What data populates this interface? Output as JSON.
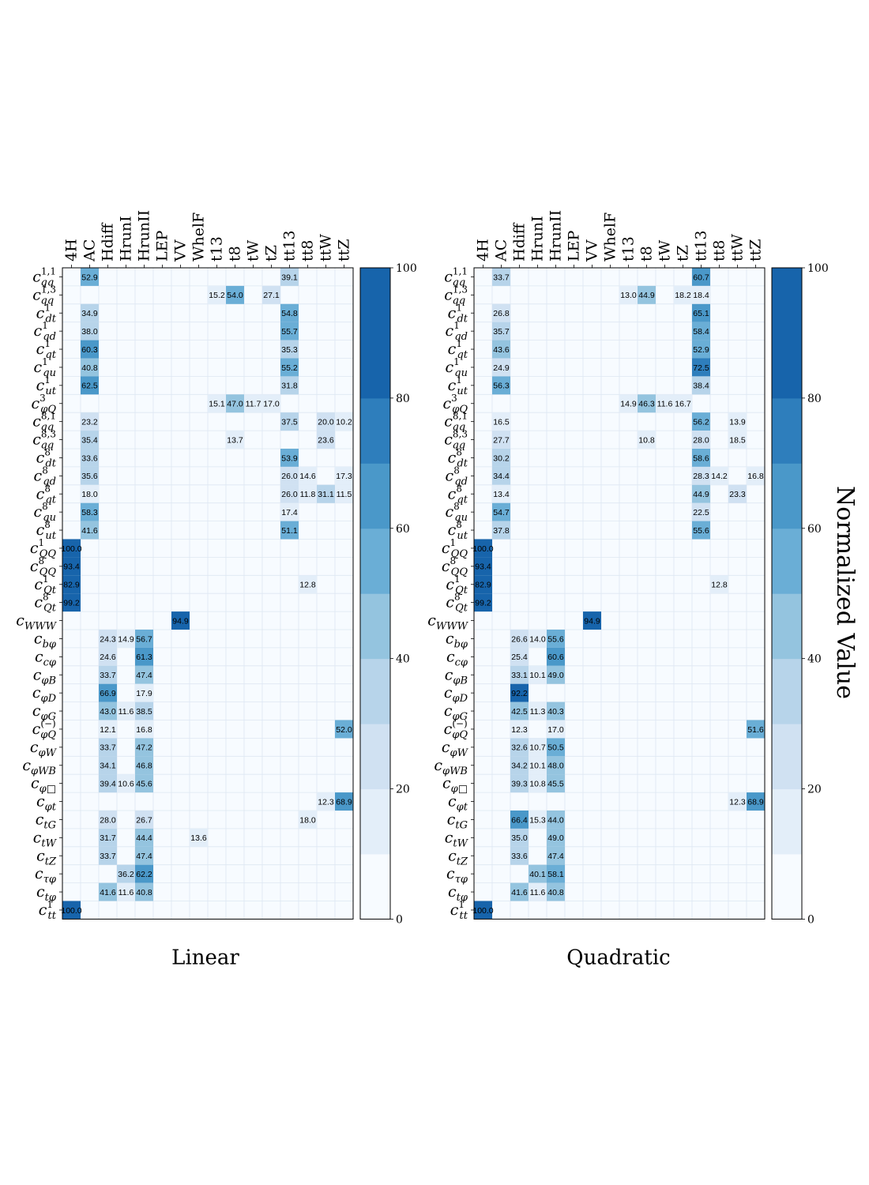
{
  "figure": {
    "colorbar_label": "Normalized Value"
  },
  "chart_data": [
    {
      "type": "heatmap",
      "title": "Linear",
      "columns": [
        "4H",
        "AC",
        "Hdiff",
        "HrunI",
        "HrunII",
        "LEP",
        "VV",
        "WhelF",
        "t13",
        "t8",
        "tW",
        "tZ",
        "tt13",
        "tt8",
        "ttW",
        "ttZ"
      ],
      "rows": [
        {
          "label": "c_qq^{1,1}",
          "base": "c",
          "sub": "qq",
          "sup": "1,1",
          "values": {
            "AC": 52.9,
            "tt13": 39.1
          }
        },
        {
          "label": "c_qq^{1,3}",
          "base": "c",
          "sub": "qq",
          "sup": "1,3",
          "values": {
            "t13": 15.2,
            "t8": 54.0,
            "tZ": 27.1
          }
        },
        {
          "label": "c_dt^{1}",
          "base": "c",
          "sub": "dt",
          "sup": "1",
          "values": {
            "AC": 34.9,
            "tt13": 54.8
          }
        },
        {
          "label": "c_qd^{1}",
          "base": "c",
          "sub": "qd",
          "sup": "1",
          "values": {
            "AC": 38.0,
            "tt13": 55.7
          }
        },
        {
          "label": "c_qt^{1}",
          "base": "c",
          "sub": "qt",
          "sup": "1",
          "values": {
            "AC": 60.3,
            "tt13": 35.3
          }
        },
        {
          "label": "c_qu^{1}",
          "base": "c",
          "sub": "qu",
          "sup": "1",
          "values": {
            "AC": 40.8,
            "tt13": 55.2
          }
        },
        {
          "label": "c_ut^{1}",
          "base": "c",
          "sub": "ut",
          "sup": "1",
          "values": {
            "AC": 62.5,
            "tt13": 31.8
          }
        },
        {
          "label": "c_φQ^{3}",
          "base": "c",
          "sub": "φQ",
          "sup": "3",
          "values": {
            "t13": 15.1,
            "t8": 47.0,
            "tW": 11.7,
            "tZ": 17.0
          }
        },
        {
          "label": "c_qq^{8,1}",
          "base": "c",
          "sub": "qq",
          "sup": "8,1",
          "values": {
            "AC": 23.2,
            "tt13": 37.5,
            "ttW": 20.0,
            "ttZ": 10.2
          }
        },
        {
          "label": "c_qq^{8,3}",
          "base": "c",
          "sub": "qq",
          "sup": "8,3",
          "values": {
            "AC": 35.4,
            "t8": 13.7,
            "ttW": 23.6
          }
        },
        {
          "label": "c_dt^{8}",
          "base": "c",
          "sub": "dt",
          "sup": "8",
          "values": {
            "AC": 33.6,
            "tt13": 53.9
          }
        },
        {
          "label": "c_qd^{8}",
          "base": "c",
          "sub": "qd",
          "sup": "8",
          "values": {
            "AC": 35.6,
            "tt13": 26.0,
            "tt8": 14.6,
            "ttZ": 17.3
          }
        },
        {
          "label": "c_qt^{8}",
          "base": "c",
          "sub": "qt",
          "sup": "8",
          "values": {
            "AC": 18.0,
            "tt13": 26.0,
            "tt8": 11.8,
            "ttW": 31.1,
            "ttZ": 11.5
          }
        },
        {
          "label": "c_qu^{8}",
          "base": "c",
          "sub": "qu",
          "sup": "8",
          "values": {
            "AC": 58.3,
            "tt13": 17.4
          }
        },
        {
          "label": "c_ut^{8}",
          "base": "c",
          "sub": "ut",
          "sup": "8",
          "values": {
            "AC": 41.6,
            "tt13": 51.1
          }
        },
        {
          "label": "c_QQ^{1}",
          "base": "c",
          "sub": "QQ",
          "sup": "1",
          "values": {
            "4H": 100.0
          }
        },
        {
          "label": "c_QQ^{8}",
          "base": "c",
          "sub": "QQ",
          "sup": "8",
          "values": {
            "4H": 93.4
          }
        },
        {
          "label": "c_Qt^{1}",
          "base": "c",
          "sub": "Qt",
          "sup": "1",
          "values": {
            "4H": 82.9,
            "tt8": 12.8
          }
        },
        {
          "label": "c_Qt^{8}",
          "base": "c",
          "sub": "Qt",
          "sup": "8",
          "values": {
            "4H": 99.2
          }
        },
        {
          "label": "c_WWW",
          "base": "c",
          "sub": "WWW",
          "sup": "",
          "values": {
            "VV": 94.9
          }
        },
        {
          "label": "c_bφ",
          "base": "c",
          "sub": "bφ",
          "sup": "",
          "values": {
            "Hdiff": 24.3,
            "HrunI": 14.9,
            "HrunII": 56.7
          }
        },
        {
          "label": "c_cφ",
          "base": "c",
          "sub": "cφ",
          "sup": "",
          "values": {
            "Hdiff": 24.6,
            "HrunII": 61.3
          }
        },
        {
          "label": "c_φB",
          "base": "c",
          "sub": "φB",
          "sup": "",
          "values": {
            "Hdiff": 33.7,
            "HrunII": 47.4
          }
        },
        {
          "label": "c_φD",
          "base": "c",
          "sub": "φD",
          "sup": "",
          "values": {
            "Hdiff": 66.9,
            "HrunII": 17.9
          }
        },
        {
          "label": "c_φG",
          "base": "c",
          "sub": "φG",
          "sup": "",
          "values": {
            "Hdiff": 43.0,
            "HrunI": 11.6,
            "HrunII": 38.5
          }
        },
        {
          "label": "c_φQ^{(−)}",
          "base": "c",
          "sub": "φQ",
          "sup": "(−)",
          "values": {
            "Hdiff": 12.1,
            "HrunII": 16.8,
            "ttZ": 52.0
          }
        },
        {
          "label": "c_φW",
          "base": "c",
          "sub": "φW",
          "sup": "",
          "values": {
            "Hdiff": 33.7,
            "HrunII": 47.2
          }
        },
        {
          "label": "c_φWB",
          "base": "c",
          "sub": "φWB",
          "sup": "",
          "values": {
            "Hdiff": 34.1,
            "HrunII": 46.8
          }
        },
        {
          "label": "c_φ□",
          "base": "c",
          "sub": "φ□",
          "sup": "",
          "values": {
            "Hdiff": 39.4,
            "HrunI": 10.6,
            "HrunII": 45.6
          }
        },
        {
          "label": "c_φt",
          "base": "c",
          "sub": "φt",
          "sup": "",
          "values": {
            "ttW": 12.3,
            "ttZ": 68.9
          }
        },
        {
          "label": "c_tG",
          "base": "c",
          "sub": "tG",
          "sup": "",
          "values": {
            "Hdiff": 28.0,
            "HrunII": 26.7,
            "tt8": 18.0
          }
        },
        {
          "label": "c_tW",
          "base": "c",
          "sub": "tW",
          "sup": "",
          "values": {
            "Hdiff": 31.7,
            "HrunII": 44.4,
            "WhelF": 13.6
          }
        },
        {
          "label": "c_tZ",
          "base": "c",
          "sub": "tZ",
          "sup": "",
          "values": {
            "Hdiff": 33.7,
            "HrunII": 47.4
          }
        },
        {
          "label": "c_τφ",
          "base": "c",
          "sub": "τφ",
          "sup": "",
          "values": {
            "HrunI": 36.2,
            "HrunII": 62.2
          }
        },
        {
          "label": "c_tφ",
          "base": "c",
          "sub": "tφ",
          "sup": "",
          "values": {
            "Hdiff": 41.6,
            "HrunI": 11.6,
            "HrunII": 40.8
          }
        },
        {
          "label": "c_tt^{1}",
          "base": "c",
          "sub": "tt",
          "sup": "1",
          "values": {
            "4H": 100.0
          }
        }
      ],
      "colorbar": {
        "range": [
          0,
          100
        ],
        "ticks": [
          0,
          20,
          40,
          60,
          80,
          100
        ],
        "levels": 10
      }
    },
    {
      "type": "heatmap",
      "title": "Quadratic",
      "columns": [
        "4H",
        "AC",
        "Hdiff",
        "HrunI",
        "HrunII",
        "LEP",
        "VV",
        "WhelF",
        "t13",
        "t8",
        "tW",
        "tZ",
        "tt13",
        "tt8",
        "ttW",
        "ttZ"
      ],
      "rows": [
        {
          "label": "c_qq^{1,1}",
          "base": "c",
          "sub": "qq",
          "sup": "1,1",
          "values": {
            "AC": 33.7,
            "tt13": 60.7
          }
        },
        {
          "label": "c_qq^{1,3}",
          "base": "c",
          "sub": "qq",
          "sup": "1,3",
          "values": {
            "t13": 13.0,
            "t8": 44.9,
            "tZ": 18.2,
            "tt13": 18.4
          }
        },
        {
          "label": "c_dt^{1}",
          "base": "c",
          "sub": "dt",
          "sup": "1",
          "values": {
            "AC": 26.8,
            "tt13": 65.1
          }
        },
        {
          "label": "c_qd^{1}",
          "base": "c",
          "sub": "qd",
          "sup": "1",
          "values": {
            "AC": 35.7,
            "tt13": 58.4
          }
        },
        {
          "label": "c_qt^{1}",
          "base": "c",
          "sub": "qt",
          "sup": "1",
          "values": {
            "AC": 43.6,
            "tt13": 52.9
          }
        },
        {
          "label": "c_qu^{1}",
          "base": "c",
          "sub": "qu",
          "sup": "1",
          "values": {
            "AC": 24.9,
            "tt13": 72.5
          }
        },
        {
          "label": "c_ut^{1}",
          "base": "c",
          "sub": "ut",
          "sup": "1",
          "values": {
            "AC": 56.3,
            "tt13": 38.4
          }
        },
        {
          "label": "c_φQ^{3}",
          "base": "c",
          "sub": "φQ",
          "sup": "3",
          "values": {
            "t13": 14.9,
            "t8": 46.3,
            "tW": 11.6,
            "tZ": 16.7
          }
        },
        {
          "label": "c_qq^{8,1}",
          "base": "c",
          "sub": "qq",
          "sup": "8,1",
          "values": {
            "AC": 16.5,
            "tt13": 56.2,
            "ttW": 13.9
          }
        },
        {
          "label": "c_qq^{8,3}",
          "base": "c",
          "sub": "qq",
          "sup": "8,3",
          "values": {
            "AC": 27.7,
            "t8": 10.8,
            "tt13": 28.0,
            "ttW": 18.5
          }
        },
        {
          "label": "c_dt^{8}",
          "base": "c",
          "sub": "dt",
          "sup": "8",
          "values": {
            "AC": 30.2,
            "tt13": 58.6
          }
        },
        {
          "label": "c_qd^{8}",
          "base": "c",
          "sub": "qd",
          "sup": "8",
          "values": {
            "AC": 34.4,
            "tt13": 28.3,
            "tt8": 14.2,
            "ttZ": 16.8
          }
        },
        {
          "label": "c_qt^{8}",
          "base": "c",
          "sub": "qt",
          "sup": "8",
          "values": {
            "AC": 13.4,
            "tt13": 44.9,
            "ttW": 23.3
          }
        },
        {
          "label": "c_qu^{8}",
          "base": "c",
          "sub": "qu",
          "sup": "8",
          "values": {
            "AC": 54.7,
            "tt13": 22.5
          }
        },
        {
          "label": "c_ut^{8}",
          "base": "c",
          "sub": "ut",
          "sup": "8",
          "values": {
            "AC": 37.8,
            "tt13": 55.6
          }
        },
        {
          "label": "c_QQ^{1}",
          "base": "c",
          "sub": "QQ",
          "sup": "1",
          "values": {
            "4H": 100.0
          }
        },
        {
          "label": "c_QQ^{8}",
          "base": "c",
          "sub": "QQ",
          "sup": "8",
          "values": {
            "4H": 93.4
          }
        },
        {
          "label": "c_Qt^{1}",
          "base": "c",
          "sub": "Qt",
          "sup": "1",
          "values": {
            "4H": 82.9,
            "tt8": 12.8
          }
        },
        {
          "label": "c_Qt^{8}",
          "base": "c",
          "sub": "Qt",
          "sup": "8",
          "values": {
            "4H": 99.2
          }
        },
        {
          "label": "c_WWW",
          "base": "c",
          "sub": "WWW",
          "sup": "",
          "values": {
            "VV": 94.9
          }
        },
        {
          "label": "c_bφ",
          "base": "c",
          "sub": "bφ",
          "sup": "",
          "values": {
            "Hdiff": 26.6,
            "HrunI": 14.0,
            "HrunII": 55.6
          }
        },
        {
          "label": "c_cφ",
          "base": "c",
          "sub": "cφ",
          "sup": "",
          "values": {
            "Hdiff": 25.4,
            "HrunII": 60.6
          }
        },
        {
          "label": "c_φB",
          "base": "c",
          "sub": "φB",
          "sup": "",
          "values": {
            "Hdiff": 33.1,
            "HrunI": 10.1,
            "HrunII": 49.0
          }
        },
        {
          "label": "c_φD",
          "base": "c",
          "sub": "φD",
          "sup": "",
          "values": {
            "Hdiff": 92.2
          }
        },
        {
          "label": "c_φG",
          "base": "c",
          "sub": "φG",
          "sup": "",
          "values": {
            "Hdiff": 42.5,
            "HrunI": 11.3,
            "HrunII": 40.3
          }
        },
        {
          "label": "c_φQ^{(−)}",
          "base": "c",
          "sub": "φQ",
          "sup": "(−)",
          "values": {
            "Hdiff": 12.3,
            "HrunII": 17.0,
            "ttZ": 51.6
          }
        },
        {
          "label": "c_φW",
          "base": "c",
          "sub": "φW",
          "sup": "",
          "values": {
            "Hdiff": 32.6,
            "HrunI": 10.7,
            "HrunII": 50.5
          }
        },
        {
          "label": "c_φWB",
          "base": "c",
          "sub": "φWB",
          "sup": "",
          "values": {
            "Hdiff": 34.2,
            "HrunI": 10.1,
            "HrunII": 48.0
          }
        },
        {
          "label": "c_φ□",
          "base": "c",
          "sub": "φ□",
          "sup": "",
          "values": {
            "Hdiff": 39.3,
            "HrunI": 10.8,
            "HrunII": 45.5
          }
        },
        {
          "label": "c_φt",
          "base": "c",
          "sub": "φt",
          "sup": "",
          "values": {
            "ttW": 12.3,
            "ttZ": 68.9
          }
        },
        {
          "label": "c_tG",
          "base": "c",
          "sub": "tG",
          "sup": "",
          "values": {
            "Hdiff": 66.4,
            "HrunI": 15.3,
            "HrunII": 44.0
          }
        },
        {
          "label": "c_tW",
          "base": "c",
          "sub": "tW",
          "sup": "",
          "values": {
            "Hdiff": 35.0,
            "HrunII": 49.0
          }
        },
        {
          "label": "c_tZ",
          "base": "c",
          "sub": "tZ",
          "sup": "",
          "values": {
            "Hdiff": 33.6,
            "HrunII": 47.4
          }
        },
        {
          "label": "c_τφ",
          "base": "c",
          "sub": "τφ",
          "sup": "",
          "values": {
            "HrunI": 40.1,
            "HrunII": 58.1
          }
        },
        {
          "label": "c_tφ",
          "base": "c",
          "sub": "tφ",
          "sup": "",
          "values": {
            "Hdiff": 41.6,
            "HrunI": 11.6,
            "HrunII": 40.8
          }
        },
        {
          "label": "c_tt^{1}",
          "base": "c",
          "sub": "tt",
          "sup": "1",
          "values": {
            "4H": 100.0
          }
        }
      ],
      "colorbar": {
        "range": [
          0,
          100
        ],
        "ticks": [
          0,
          20,
          40,
          60,
          80,
          100
        ],
        "levels": 10
      }
    }
  ],
  "colors": {
    "palette": [
      "#f7fbff",
      "#e3eef9",
      "#d0e1f2",
      "#b7d4ea",
      "#94c4df",
      "#6aaed6",
      "#4a98c9",
      "#2e7ebc",
      "#1764ab",
      "#1764ab"
    ],
    "grid": "#dde7f2",
    "frame": "#000000",
    "text": "#000000"
  }
}
